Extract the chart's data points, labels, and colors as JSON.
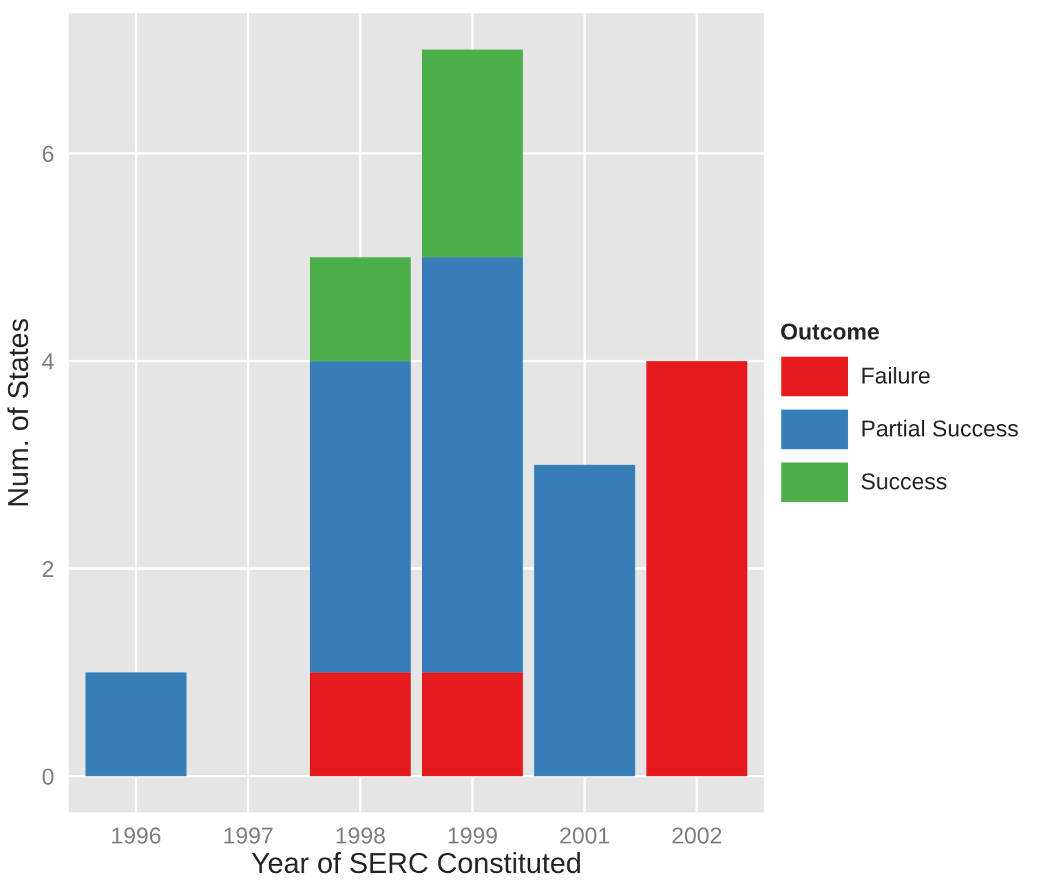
{
  "chart_data": {
    "type": "bar",
    "stacked": true,
    "xlabel": "Year of SERC Constituted",
    "ylabel": "Num. of States",
    "legend_title": "Outcome",
    "categories": [
      "1996",
      "1997",
      "1998",
      "1999",
      "2001",
      "2002"
    ],
    "series": [
      {
        "name": "Failure",
        "color": "#e41a1c",
        "values": [
          0,
          0,
          1,
          1,
          0,
          4
        ]
      },
      {
        "name": "Partial Success",
        "color": "#377eb8",
        "values": [
          1,
          0,
          3,
          4,
          3,
          0
        ]
      },
      {
        "name": "Success",
        "color": "#4daf4a",
        "values": [
          0,
          0,
          1,
          2,
          0,
          0
        ]
      }
    ],
    "ylim": [
      -0.35,
      7.35
    ],
    "yticks": [
      0,
      2,
      4,
      6
    ],
    "grid": true,
    "legend": "right"
  }
}
